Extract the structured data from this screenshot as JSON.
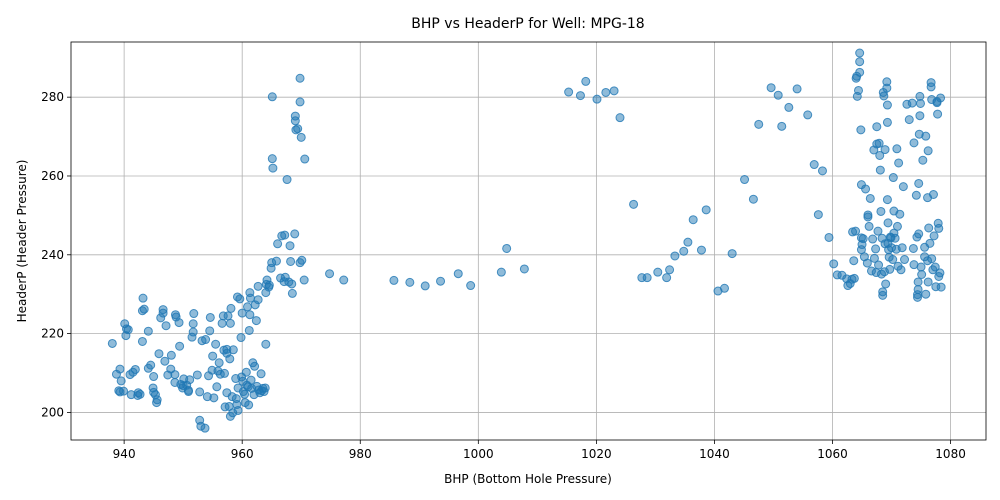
{
  "chart_data": {
    "type": "scatter",
    "title": "BHP vs HeaderP for Well: MPG-18",
    "xlabel": "BHP (Bottom Hole Pressure)",
    "ylabel": "HeaderP (Header Pressure)",
    "xlim": [
      931,
      1086
    ],
    "ylim": [
      193,
      294
    ],
    "xticks": [
      940,
      960,
      980,
      1000,
      1020,
      1040,
      1060,
      1080
    ],
    "yticks": [
      200,
      220,
      240,
      260,
      280
    ],
    "grid": true,
    "marker_color": "#1f77b4",
    "marker_alpha": 0.5,
    "points": [
      [
        938.0,
        217.5
      ],
      [
        938.7,
        209.7
      ],
      [
        939.1,
        205.5
      ],
      [
        939.3,
        211.0
      ],
      [
        939.3,
        205.2
      ],
      [
        939.5,
        208.0
      ],
      [
        939.9,
        205.4
      ],
      [
        940.1,
        222.5
      ],
      [
        940.3,
        219.5
      ],
      [
        940.4,
        221.2
      ],
      [
        940.7,
        221.0
      ],
      [
        941.0,
        209.6
      ],
      [
        941.2,
        204.5
      ],
      [
        941.5,
        210.2
      ],
      [
        941.9,
        210.9
      ],
      [
        942.3,
        204.3
      ],
      [
        942.4,
        205.0
      ],
      [
        942.7,
        204.6
      ],
      [
        943.1,
        218.0
      ],
      [
        943.1,
        225.8
      ],
      [
        943.2,
        229.0
      ],
      [
        943.4,
        226.2
      ],
      [
        944.1,
        220.6
      ],
      [
        944.1,
        211.2
      ],
      [
        944.5,
        212.0
      ],
      [
        944.9,
        206.2
      ],
      [
        945.0,
        205.1
      ],
      [
        945.0,
        209.1
      ],
      [
        945.3,
        204.5
      ],
      [
        945.5,
        202.5
      ],
      [
        945.6,
        203.2
      ],
      [
        945.9,
        214.9
      ],
      [
        946.2,
        224.0
      ],
      [
        946.6,
        226.1
      ],
      [
        946.6,
        225.2
      ],
      [
        946.9,
        213.0
      ],
      [
        947.1,
        222.0
      ],
      [
        947.4,
        209.5
      ],
      [
        947.9,
        211.0
      ],
      [
        948.0,
        214.5
      ],
      [
        948.6,
        207.6
      ],
      [
        948.6,
        209.6
      ],
      [
        948.7,
        224.8
      ],
      [
        948.8,
        224.2
      ],
      [
        949.3,
        222.8
      ],
      [
        949.4,
        216.8
      ],
      [
        949.6,
        207.1
      ],
      [
        949.9,
        206.2
      ],
      [
        950.0,
        206.8
      ],
      [
        950.1,
        208.5
      ],
      [
        950.6,
        206.9
      ],
      [
        950.9,
        205.3
      ],
      [
        950.9,
        205.6
      ],
      [
        951.1,
        208.3
      ],
      [
        951.5,
        219.1
      ],
      [
        951.7,
        220.4
      ],
      [
        951.7,
        222.5
      ],
      [
        951.8,
        225.1
      ],
      [
        952.4,
        209.5
      ],
      [
        952.8,
        205.2
      ],
      [
        952.8,
        198.0
      ],
      [
        953.0,
        196.5
      ],
      [
        953.2,
        218.2
      ],
      [
        953.7,
        196.0
      ],
      [
        953.8,
        218.5
      ],
      [
        954.1,
        204.0
      ],
      [
        954.3,
        209.3
      ],
      [
        954.5,
        220.7
      ],
      [
        954.6,
        224.1
      ],
      [
        954.9,
        210.7
      ],
      [
        955.0,
        214.3
      ],
      [
        955.2,
        203.7
      ],
      [
        955.5,
        217.3
      ],
      [
        955.7,
        206.5
      ],
      [
        955.9,
        210.5
      ],
      [
        956.1,
        212.6
      ],
      [
        956.3,
        209.7
      ],
      [
        956.6,
        222.6
      ],
      [
        956.8,
        224.5
      ],
      [
        956.9,
        215.8
      ],
      [
        957.0,
        209.9
      ],
      [
        957.1,
        201.4
      ],
      [
        957.4,
        205.0
      ],
      [
        957.4,
        215.0
      ],
      [
        957.4,
        216.0
      ],
      [
        957.6,
        224.5
      ],
      [
        957.8,
        201.5
      ],
      [
        957.9,
        213.6
      ],
      [
        958.0,
        199.0
      ],
      [
        958.0,
        222.6
      ],
      [
        958.1,
        226.4
      ],
      [
        958.3,
        204.0
      ],
      [
        958.4,
        199.9
      ],
      [
        958.5,
        215.9
      ],
      [
        958.9,
        208.6
      ],
      [
        959.0,
        203.5
      ],
      [
        959.1,
        202.0
      ],
      [
        959.2,
        229.3
      ],
      [
        959.3,
        206.2
      ],
      [
        959.3,
        200.5
      ],
      [
        959.6,
        228.8
      ],
      [
        959.8,
        219.0
      ],
      [
        959.9,
        209.0
      ],
      [
        960.0,
        225.2
      ],
      [
        960.1,
        207.9
      ],
      [
        960.2,
        205.3
      ],
      [
        960.4,
        204.6
      ],
      [
        960.5,
        202.5
      ],
      [
        960.7,
        210.2
      ],
      [
        960.8,
        206.9
      ],
      [
        960.9,
        226.8
      ],
      [
        961.0,
        206.5
      ],
      [
        961.1,
        201.9
      ],
      [
        961.2,
        220.8
      ],
      [
        961.3,
        224.8
      ],
      [
        961.3,
        230.4
      ],
      [
        961.4,
        229.0
      ],
      [
        961.5,
        208.2
      ],
      [
        961.6,
        206.1
      ],
      [
        961.8,
        212.6
      ],
      [
        962.0,
        204.5
      ],
      [
        962.1,
        211.7
      ],
      [
        962.2,
        227.3
      ],
      [
        962.4,
        223.3
      ],
      [
        962.5,
        206.6
      ],
      [
        962.7,
        228.6
      ],
      [
        962.7,
        232.0
      ],
      [
        962.8,
        205.7
      ],
      [
        963.0,
        205.0
      ],
      [
        963.2,
        209.8
      ],
      [
        963.3,
        205.5
      ],
      [
        963.5,
        206.1
      ],
      [
        963.7,
        205.3
      ],
      [
        963.9,
        206.2
      ],
      [
        964.0,
        217.3
      ],
      [
        964.0,
        230.4
      ],
      [
        964.1,
        232.5
      ],
      [
        964.2,
        233.6
      ],
      [
        964.5,
        231.8
      ],
      [
        964.6,
        232.3
      ],
      [
        964.9,
        236.6
      ],
      [
        965.0,
        238.0
      ],
      [
        965.1,
        280.1
      ],
      [
        965.1,
        264.4
      ],
      [
        965.2,
        262.0
      ],
      [
        965.8,
        238.4
      ],
      [
        966.0,
        242.8
      ],
      [
        966.5,
        234.1
      ],
      [
        966.7,
        244.8
      ],
      [
        967.1,
        233.2
      ],
      [
        967.2,
        245.0
      ],
      [
        967.3,
        234.3
      ],
      [
        967.6,
        259.1
      ],
      [
        967.9,
        233.1
      ],
      [
        968.1,
        242.3
      ],
      [
        968.2,
        238.3
      ],
      [
        968.4,
        232.6
      ],
      [
        968.5,
        230.2
      ],
      [
        968.9,
        245.3
      ],
      [
        969.0,
        274.0
      ],
      [
        969.0,
        275.2
      ],
      [
        969.1,
        271.7
      ],
      [
        969.4,
        272.0
      ],
      [
        969.8,
        284.8
      ],
      [
        969.8,
        278.8
      ],
      [
        969.8,
        238.0
      ],
      [
        970.0,
        269.8
      ],
      [
        970.1,
        238.6
      ],
      [
        970.5,
        233.6
      ],
      [
        970.6,
        264.3
      ],
      [
        974.8,
        235.2
      ],
      [
        977.2,
        233.6
      ],
      [
        985.7,
        233.5
      ],
      [
        988.4,
        233.0
      ],
      [
        991.0,
        232.1
      ],
      [
        993.6,
        233.3
      ],
      [
        996.6,
        235.2
      ],
      [
        998.7,
        232.2
      ],
      [
        1003.9,
        235.6
      ],
      [
        1004.8,
        241.6
      ],
      [
        1007.8,
        236.4
      ],
      [
        1015.3,
        281.3
      ],
      [
        1017.3,
        280.4
      ],
      [
        1018.2,
        284.0
      ],
      [
        1020.1,
        279.5
      ],
      [
        1021.6,
        281.2
      ],
      [
        1023.0,
        281.6
      ],
      [
        1024.0,
        274.8
      ],
      [
        1026.3,
        252.8
      ],
      [
        1027.7,
        234.2
      ],
      [
        1028.6,
        234.2
      ],
      [
        1030.4,
        235.6
      ],
      [
        1031.9,
        234.2
      ],
      [
        1032.4,
        236.2
      ],
      [
        1033.3,
        239.7
      ],
      [
        1034.8,
        240.9
      ],
      [
        1035.5,
        243.2
      ],
      [
        1036.4,
        248.9
      ],
      [
        1037.8,
        241.2
      ],
      [
        1038.6,
        251.4
      ],
      [
        1040.6,
        230.8
      ],
      [
        1041.7,
        231.5
      ],
      [
        1043.0,
        240.3
      ],
      [
        1045.1,
        259.1
      ],
      [
        1046.6,
        254.1
      ],
      [
        1047.5,
        273.1
      ],
      [
        1049.6,
        282.4
      ],
      [
        1050.8,
        280.5
      ],
      [
        1051.4,
        272.6
      ],
      [
        1052.6,
        277.4
      ],
      [
        1054.0,
        282.1
      ],
      [
        1055.8,
        275.5
      ],
      [
        1056.9,
        262.9
      ],
      [
        1057.6,
        250.2
      ],
      [
        1058.3,
        261.3
      ],
      [
        1059.4,
        244.4
      ],
      [
        1060.2,
        237.7
      ],
      [
        1060.8,
        234.9
      ],
      [
        1061.6,
        234.8
      ],
      [
        1062.4,
        233.9
      ],
      [
        1062.6,
        232.2
      ],
      [
        1063.0,
        232.7
      ],
      [
        1063.3,
        233.8
      ],
      [
        1063.4,
        245.8
      ],
      [
        1063.6,
        238.5
      ],
      [
        1063.7,
        234.0
      ],
      [
        1063.9,
        246.0
      ],
      [
        1064.0,
        284.8
      ],
      [
        1064.1,
        285.3
      ],
      [
        1064.2,
        280.2
      ],
      [
        1064.4,
        281.7
      ],
      [
        1064.6,
        291.2
      ],
      [
        1064.6,
        286.3
      ],
      [
        1064.6,
        289.0
      ],
      [
        1064.8,
        271.7
      ],
      [
        1064.9,
        257.8
      ],
      [
        1064.9,
        244.3
      ],
      [
        1064.9,
        241.3
      ],
      [
        1065.0,
        242.6
      ],
      [
        1065.2,
        244.1
      ],
      [
        1065.4,
        239.5
      ],
      [
        1065.6,
        256.7
      ],
      [
        1065.9,
        237.9
      ],
      [
        1066.0,
        249.6
      ],
      [
        1066.0,
        250.1
      ],
      [
        1066.2,
        247.2
      ],
      [
        1066.4,
        254.3
      ],
      [
        1066.6,
        235.9
      ],
      [
        1066.8,
        244.0
      ],
      [
        1067.0,
        266.6
      ],
      [
        1067.1,
        239.1
      ],
      [
        1067.3,
        241.5
      ],
      [
        1067.4,
        235.5
      ],
      [
        1067.5,
        272.5
      ],
      [
        1067.5,
        268.1
      ],
      [
        1067.7,
        246.0
      ],
      [
        1067.8,
        237.4
      ],
      [
        1067.9,
        268.3
      ],
      [
        1068.0,
        265.2
      ],
      [
        1068.1,
        261.5
      ],
      [
        1068.2,
        251.0
      ],
      [
        1068.3,
        235.1
      ],
      [
        1068.4,
        244.2
      ],
      [
        1068.5,
        230.6
      ],
      [
        1068.5,
        229.7
      ],
      [
        1068.6,
        281.2
      ],
      [
        1068.7,
        280.3
      ],
      [
        1068.8,
        235.7
      ],
      [
        1068.9,
        242.8
      ],
      [
        1068.9,
        266.7
      ],
      [
        1069.0,
        232.6
      ],
      [
        1069.2,
        283.9
      ],
      [
        1069.2,
        282.3
      ],
      [
        1069.3,
        278.0
      ],
      [
        1069.3,
        273.6
      ],
      [
        1069.3,
        254.0
      ],
      [
        1069.4,
        248.1
      ],
      [
        1069.4,
        242.9
      ],
      [
        1069.5,
        241.3
      ],
      [
        1069.6,
        239.4
      ],
      [
        1069.7,
        236.3
      ],
      [
        1069.8,
        244.5
      ],
      [
        1069.9,
        244.3
      ],
      [
        1070.0,
        241.8
      ],
      [
        1070.2,
        238.8
      ],
      [
        1070.3,
        259.6
      ],
      [
        1070.4,
        251.1
      ],
      [
        1070.4,
        245.5
      ],
      [
        1070.6,
        244.2
      ],
      [
        1070.8,
        241.4
      ],
      [
        1070.9,
        266.9
      ],
      [
        1071.0,
        247.2
      ],
      [
        1071.1,
        237.1
      ],
      [
        1071.2,
        263.3
      ],
      [
        1071.4,
        250.3
      ],
      [
        1071.6,
        236.2
      ],
      [
        1071.8,
        241.8
      ],
      [
        1072.0,
        257.3
      ],
      [
        1072.2,
        238.8
      ],
      [
        1072.6,
        278.2
      ],
      [
        1073.0,
        274.3
      ],
      [
        1073.5,
        278.5
      ],
      [
        1073.7,
        241.6
      ],
      [
        1073.8,
        237.5
      ],
      [
        1073.8,
        268.4
      ],
      [
        1074.2,
        255.1
      ],
      [
        1074.3,
        244.5
      ],
      [
        1074.4,
        229.9
      ],
      [
        1074.4,
        229.2
      ],
      [
        1074.5,
        231.2
      ],
      [
        1074.5,
        233.1
      ],
      [
        1074.6,
        245.3
      ],
      [
        1074.6,
        258.1
      ],
      [
        1074.7,
        270.6
      ],
      [
        1074.8,
        275.3
      ],
      [
        1074.8,
        280.2
      ],
      [
        1074.9,
        278.4
      ],
      [
        1075.0,
        236.9
      ],
      [
        1075.1,
        235.0
      ],
      [
        1075.3,
        264.0
      ],
      [
        1075.6,
        239.5
      ],
      [
        1075.6,
        241.9
      ],
      [
        1075.8,
        230.0
      ],
      [
        1075.8,
        270.1
      ],
      [
        1076.1,
        254.5
      ],
      [
        1076.1,
        238.5
      ],
      [
        1076.2,
        233.1
      ],
      [
        1076.2,
        266.4
      ],
      [
        1076.3,
        246.8
      ],
      [
        1076.5,
        242.9
      ],
      [
        1076.7,
        283.7
      ],
      [
        1076.7,
        282.6
      ],
      [
        1076.8,
        279.4
      ],
      [
        1076.8,
        239.0
      ],
      [
        1077.0,
        236.2
      ],
      [
        1077.1,
        255.3
      ],
      [
        1077.2,
        244.8
      ],
      [
        1077.4,
        236.9
      ],
      [
        1077.5,
        231.9
      ],
      [
        1077.7,
        278.9
      ],
      [
        1077.7,
        278.6
      ],
      [
        1077.8,
        275.7
      ],
      [
        1077.9,
        248.0
      ],
      [
        1078.0,
        246.7
      ],
      [
        1078.0,
        234.5
      ],
      [
        1078.2,
        235.4
      ],
      [
        1078.4,
        231.8
      ],
      [
        1078.3,
        279.8
      ]
    ]
  }
}
